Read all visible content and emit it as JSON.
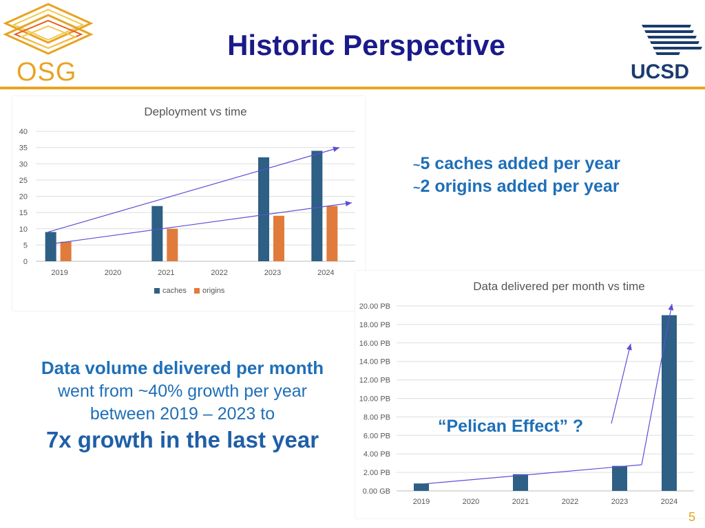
{
  "slide": {
    "title": "Historic Perspective",
    "osg_logo_text": "OSG",
    "ucsd_logo_text": "UCSD",
    "page_number": "5"
  },
  "stats": {
    "line1": "5 caches added per year",
    "line2": "2 origins added per year",
    "tilde": "~"
  },
  "summary": {
    "line1": "Data volume delivered per month",
    "line2": "went from ~40% growth per year",
    "line3": "between 2019 – 2023 to",
    "line4": "7x growth in the last year"
  },
  "annotation": {
    "pelican": "“Pelican Effect” ?"
  },
  "colors": {
    "accent": "#e8a321",
    "title": "#1a1a8a",
    "text_blue": "#1f6fb8",
    "caches": "#2e5f85",
    "origins": "#e07b3c",
    "arrow": "#5b4fd6"
  },
  "chart_data": [
    {
      "type": "bar",
      "title": "Deployment vs time",
      "categories": [
        "2019",
        "2020",
        "2021",
        "2022",
        "2023",
        "2024"
      ],
      "series": [
        {
          "name": "caches",
          "values": [
            9,
            0,
            17,
            0,
            32,
            34
          ]
        },
        {
          "name": "origins",
          "values": [
            6,
            0,
            10,
            0,
            14,
            17
          ]
        }
      ],
      "ylim": [
        0,
        40
      ],
      "yticks": [
        "0",
        "5",
        "10",
        "15",
        "20",
        "25",
        "30",
        "35",
        "40"
      ],
      "legend": "bottom",
      "grid": true
    },
    {
      "type": "bar",
      "title": "Data delivered per month vs time",
      "categories": [
        "2019",
        "2020",
        "2021",
        "2022",
        "2023",
        "2024"
      ],
      "series": [
        {
          "name": "data delivered",
          "values": [
            0.8,
            0,
            1.8,
            0,
            2.7,
            19
          ]
        }
      ],
      "ylim": [
        0,
        20
      ],
      "yticks": [
        "0.00 GB",
        "2.00 PB",
        "4.00 PB",
        "6.00 PB",
        "8.00 PB",
        "10.00 PB",
        "12.00 PB",
        "14.00 PB",
        "16.00 PB",
        "18.00 PB",
        "20.00 PB"
      ],
      "grid": true
    }
  ]
}
